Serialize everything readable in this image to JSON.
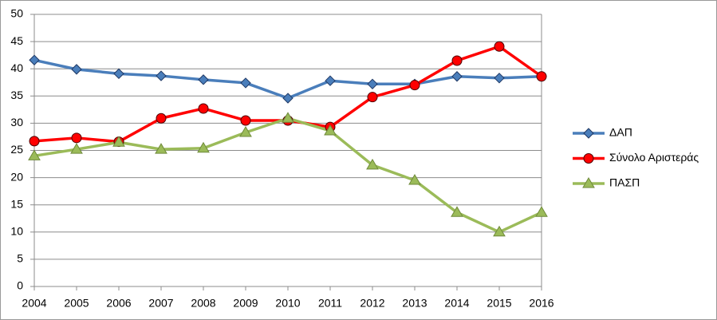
{
  "chart_data": {
    "type": "line",
    "categories": [
      "2004",
      "2005",
      "2006",
      "2007",
      "2008",
      "2009",
      "2010",
      "2011",
      "2012",
      "2013",
      "2014",
      "2015",
      "2016"
    ],
    "series": [
      {
        "name": "ΔΑΠ",
        "color": "#4a7ebb",
        "marker": "diamond",
        "values": [
          41.6,
          39.9,
          39.1,
          38.7,
          38.0,
          37.4,
          34.6,
          37.8,
          37.2,
          37.2,
          38.6,
          38.3,
          38.6
        ]
      },
      {
        "name": "Σύνολο Αριστεράς",
        "color": "#ff0000",
        "marker": "circle",
        "values": [
          26.7,
          27.3,
          26.6,
          30.9,
          32.7,
          30.5,
          30.5,
          29.3,
          34.8,
          37.0,
          41.5,
          44.1,
          38.6
        ]
      },
      {
        "name": "ΠΑΣΠ",
        "color": "#9bbb59",
        "marker": "triangle",
        "values": [
          24.0,
          25.2,
          26.5,
          25.2,
          25.4,
          28.3,
          30.9,
          28.6,
          22.3,
          19.5,
          13.6,
          10.0,
          13.6
        ]
      }
    ],
    "ylim": [
      0,
      50
    ],
    "yticks": [
      0,
      5,
      10,
      15,
      20,
      25,
      30,
      35,
      40,
      45,
      50
    ],
    "grid": true,
    "legend": "right"
  }
}
